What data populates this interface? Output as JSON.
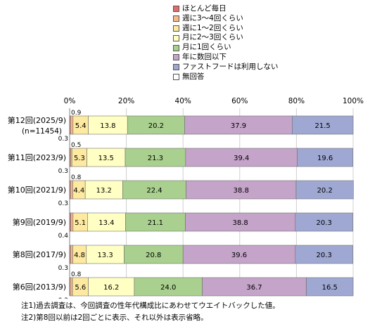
{
  "chart_data": {
    "type": "bar",
    "orientation": "horizontal",
    "stacked": true,
    "x_axis": {
      "ticks": [
        "0%",
        "20%",
        "40%",
        "60%",
        "80%",
        "100%"
      ],
      "range": [
        0,
        100
      ],
      "position": "top"
    },
    "grid": true,
    "legend_position": "top-right",
    "series": [
      {
        "name": "ほとんど毎日",
        "color": "#e06c6c"
      },
      {
        "name": "週に3～4回くらい",
        "color": "#f5b98a"
      },
      {
        "name": "週に1～2回くらい",
        "color": "#fde9a0"
      },
      {
        "name": "月に2～3回くらい",
        "color": "#ffffc4"
      },
      {
        "name": "月に1回くらい",
        "color": "#a9d08e"
      },
      {
        "name": "年に数回以下",
        "color": "#c4a4c9"
      },
      {
        "name": "ファストフードは利用しない",
        "color": "#9fa8d2"
      },
      {
        "name": "無回答",
        "color": "#ffffff"
      }
    ],
    "categories": [
      {
        "label": "第12回(2025/9)",
        "sublabel": "(n=11454)",
        "values": [
          0.3,
          0.9,
          5.4,
          13.8,
          20.2,
          37.9,
          21.5,
          0
        ],
        "labels": {
          "a": "0.9",
          "b": "0.3",
          "v2": "5.4",
          "v3": "13.8",
          "v4": "20.2",
          "v5": "37.9",
          "v6": "21.5"
        }
      },
      {
        "label": "第11回(2023/9)",
        "sublabel": "",
        "values": [
          0.3,
          0.5,
          5.3,
          13.5,
          21.3,
          39.4,
          19.6,
          0
        ],
        "labels": {
          "a": "0.5",
          "b": "0.3",
          "v2": "5.3",
          "v3": "13.5",
          "v4": "21.3",
          "v5": "39.4",
          "v6": "19.6"
        }
      },
      {
        "label": "第10回(2021/9)",
        "sublabel": "",
        "values": [
          0.3,
          0.8,
          4.4,
          13.2,
          22.4,
          38.8,
          20.2,
          0
        ],
        "labels": {
          "a": "0.8",
          "b": "0.3",
          "v2": "4.4",
          "v3": "13.2",
          "v4": "22.4",
          "v5": "38.8",
          "v6": "20.2"
        }
      },
      {
        "label": "第9回(2019/9)",
        "sublabel": "",
        "values": [
          0.4,
          0.8,
          5.1,
          13.4,
          21.1,
          38.8,
          20.3,
          0
        ],
        "labels": {
          "a": "",
          "b": "0.4",
          "v2": "5.1",
          "v3": "13.4",
          "v4": "21.1",
          "v5": "38.8",
          "v6": "20.3"
        }
      },
      {
        "label": "第8回(2017/9)",
        "sublabel": "",
        "values": [
          0.3,
          0.8,
          4.8,
          13.3,
          20.8,
          39.6,
          20.3,
          0
        ],
        "labels": {
          "a": "",
          "b": "0.3",
          "v2": "4.8",
          "v3": "13.3",
          "v4": "20.8",
          "v5": "39.6",
          "v6": "20.3"
        }
      },
      {
        "label": "第6回(2013/9)",
        "sublabel": "",
        "values": [
          0.2,
          0.8,
          5.6,
          16.2,
          24.0,
          36.7,
          16.5,
          0
        ],
        "labels": {
          "a": "0.8",
          "b": "0.2",
          "v2": "5.6",
          "v3": "16.2",
          "v4": "24.0",
          "v5": "36.7",
          "v6": "16.5"
        }
      }
    ]
  },
  "notes": [
    "注1)過去調査は、今回調査の性年代構成比にあわせてウエイトバックした値。",
    "注2)第8回以前は2回ごとに表示、それ以外は表示省略。"
  ]
}
